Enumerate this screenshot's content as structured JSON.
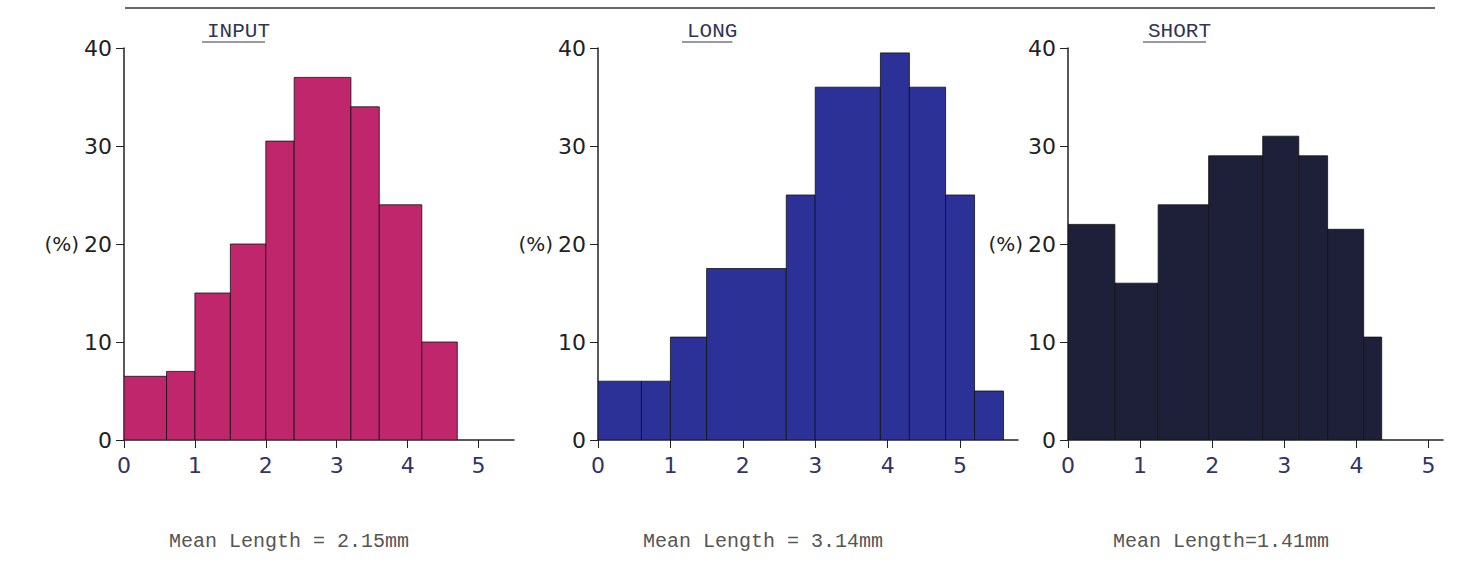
{
  "chart_data": [
    {
      "type": "histogram",
      "title": "INPUT",
      "bins": [
        0,
        0.6,
        1.0,
        1.5,
        2.0,
        2.4,
        3.2,
        3.6,
        4.2,
        4.7
      ],
      "values": [
        6.5,
        7,
        15,
        20,
        30.5,
        37,
        34,
        24,
        10
      ],
      "color": "#c0266c",
      "xlim": [
        0,
        5.5
      ],
      "xticks": [
        0,
        1,
        2,
        3,
        4,
        5
      ],
      "ylim": [
        0,
        40
      ],
      "yticks": [
        0,
        10,
        20,
        30,
        40
      ],
      "ylabel": "(%)",
      "annotation": "Mean Length = 2.15mm",
      "grid": false
    },
    {
      "type": "histogram",
      "title": "LONG",
      "bins": [
        0,
        0.6,
        1.0,
        1.5,
        2.6,
        3.0,
        3.9,
        4.3,
        4.8,
        5.2,
        5.6
      ],
      "values": [
        6,
        6,
        10.5,
        17.5,
        25,
        36,
        39.5,
        36,
        25,
        5
      ],
      "color": "#2b3196",
      "xlim": [
        0,
        5.8
      ],
      "xticks": [
        0,
        1,
        2,
        3,
        4,
        5
      ],
      "ylim": [
        0,
        40
      ],
      "yticks": [
        0,
        10,
        20,
        30,
        40
      ],
      "ylabel": "(%)",
      "annotation": "Mean Length = 3.14mm",
      "grid": false
    },
    {
      "type": "histogram",
      "title": "SHORT",
      "bins": [
        0,
        0.65,
        1.25,
        1.95,
        2.7,
        3.2,
        3.6,
        4.1,
        4.35
      ],
      "values": [
        22,
        16,
        24,
        29,
        31,
        29,
        21.5,
        10.5
      ],
      "color": "#1d2038",
      "xlim": [
        0,
        5.2
      ],
      "xticks": [
        0,
        1,
        2,
        3,
        4,
        5
      ],
      "ylim": [
        0,
        40
      ],
      "yticks": [
        0,
        10,
        20,
        30,
        40
      ],
      "ylabel": "(%)",
      "annotation": "Mean Length=1.41mm",
      "grid": false
    }
  ]
}
